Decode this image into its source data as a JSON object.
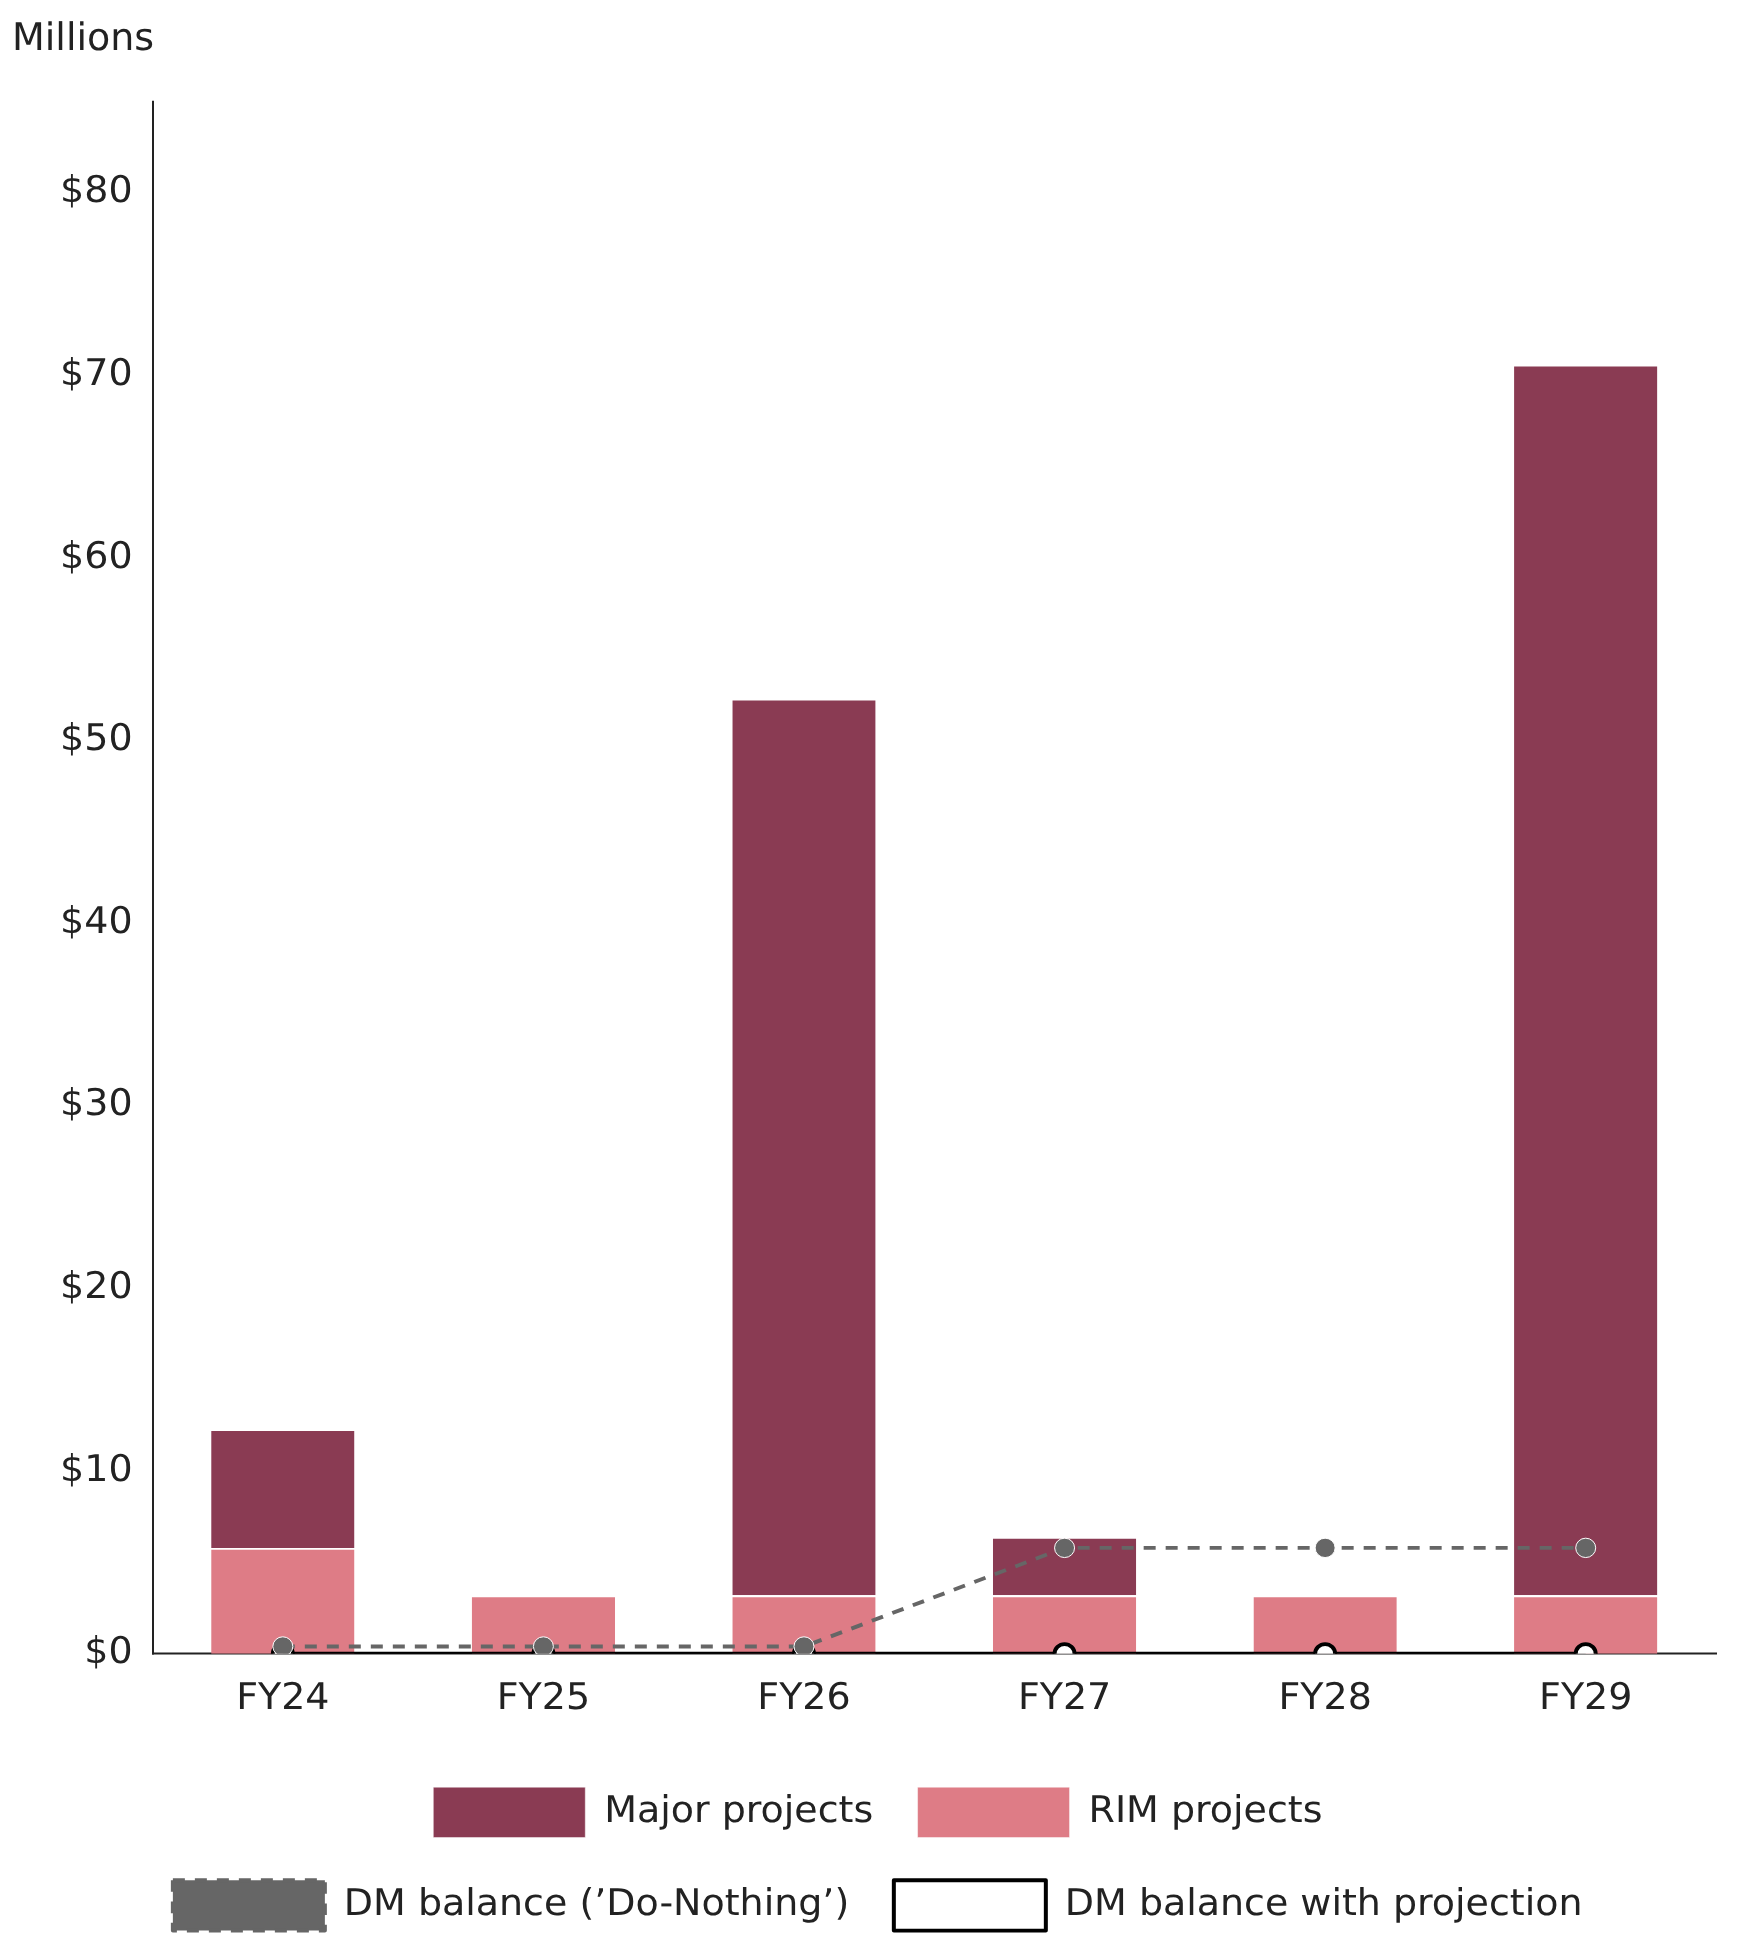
{
  "chart_data": {
    "type": "bar",
    "ylabel": "Millions",
    "categories": [
      "FY24",
      "FY25",
      "FY26",
      "FY27",
      "FY28",
      "FY29"
    ],
    "stacked": true,
    "series": [
      {
        "name": "RIM projects",
        "color": "#de7c86",
        "values": [
          5.8,
          3.2,
          3.2,
          3.2,
          3.2,
          3.2
        ]
      },
      {
        "name": "Major projects",
        "color": "#8a3b53",
        "values": [
          6.5,
          null,
          49.1,
          3.2,
          null,
          67.4
        ]
      },
      {
        "name": "DM balance (’Do-Nothing’)",
        "type": "line",
        "color": "#666666",
        "line_style": "dashed",
        "marker": "circle",
        "values": [
          0.4,
          0.4,
          0.4,
          5.8,
          5.8,
          5.8
        ]
      },
      {
        "name": "DM balance with projection",
        "type": "line",
        "color": "#000000",
        "line_style": "solid",
        "marker": "circle",
        "values": [
          0,
          0,
          0,
          0,
          0,
          0
        ]
      }
    ],
    "ylim": [
      0,
      85
    ],
    "yticks": [
      {
        "value": 0,
        "label": "$0"
      },
      {
        "value": 10,
        "label": "$10"
      },
      {
        "value": 20,
        "label": "$20"
      },
      {
        "value": 30,
        "label": "$30"
      },
      {
        "value": 40,
        "label": "$40"
      },
      {
        "value": 50,
        "label": "$50"
      },
      {
        "value": 60,
        "label": "$60"
      },
      {
        "value": 70,
        "label": "$70"
      },
      {
        "value": 80,
        "label": "$80"
      }
    ],
    "grid": false,
    "legend": "bottom"
  }
}
